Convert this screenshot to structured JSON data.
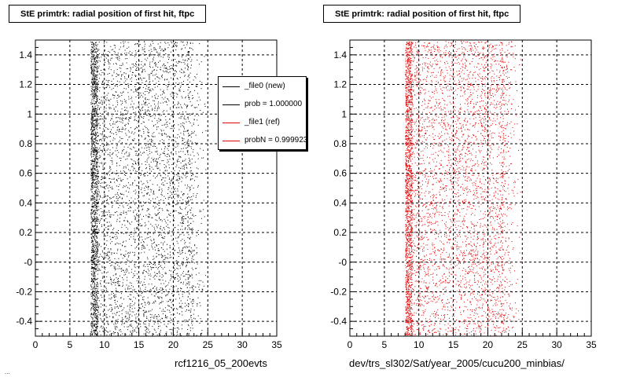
{
  "left_panel": {
    "title": "StE primtrk: radial position of first hit, ftpc",
    "xlabel": "rcf1216_05_200evts",
    "footer_text": "...",
    "legend": [
      {
        "label": "_file0 (new)",
        "color": "#000000"
      },
      {
        "label": "prob = 1.000000",
        "color": "#000000"
      },
      {
        "label": "_file1 (ref)",
        "color": "#e00000"
      },
      {
        "label": "probN = 0.999923",
        "color": "#e00000"
      }
    ]
  },
  "right_panel": {
    "title": "StE primtrk: radial position of first hit, ftpc",
    "xlabel": "dev/trs_sl302/Sat/year_2005/cucu200_minbias/"
  },
  "chart_data": [
    {
      "type": "scatter",
      "title": "StE primtrk: radial position of first hit, ftpc",
      "xlabel": "rcf1216_05_200evts",
      "ylabel": "",
      "xlim": [
        0,
        35
      ],
      "ylim": [
        -0.5,
        1.5
      ],
      "x_ticks": [
        0,
        5,
        10,
        15,
        20,
        25,
        30,
        35
      ],
      "x_tick_labels": [
        "0",
        "5",
        "10",
        "15",
        "20",
        "25",
        "30",
        "35"
      ],
      "y_ticks": [
        -0.4,
        -0.2,
        0,
        0.2,
        0.4,
        0.6,
        0.8,
        1.0,
        1.2,
        1.4
      ],
      "y_tick_labels": [
        "-0.4",
        "-0.2",
        "-0",
        "0.2",
        "0.4",
        "0.6",
        "0.8",
        "1",
        "1.2",
        "1.4"
      ],
      "grid": true,
      "series": [
        {
          "name": "_file0 (new)",
          "color": "#000000",
          "x_range": [
            8.0,
            25.0
          ],
          "dense_band": [
            8.0,
            9.0
          ]
        }
      ],
      "legend_position": "top-right"
    },
    {
      "type": "scatter",
      "title": "StE primtrk: radial position of first hit, ftpc",
      "xlabel": "dev/trs_sl302/Sat/year_2005/cucu200_minbias/",
      "ylabel": "",
      "xlim": [
        0,
        35
      ],
      "ylim": [
        -0.5,
        1.5
      ],
      "x_ticks": [
        0,
        5,
        10,
        15,
        20,
        25,
        30,
        35
      ],
      "x_tick_labels": [
        "0",
        "5",
        "10",
        "15",
        "20",
        "25",
        "30",
        "35"
      ],
      "y_ticks": [
        -0.4,
        -0.2,
        0,
        0.2,
        0.4,
        0.6,
        0.8,
        1.0,
        1.2,
        1.4
      ],
      "y_tick_labels": [
        "-0.4",
        "-0.2",
        "-0",
        "0.2",
        "0.4",
        "0.6",
        "0.8",
        "1",
        "1.2",
        "1.4"
      ],
      "grid": true,
      "series": [
        {
          "name": "_file1 (ref)",
          "color": "#e00000",
          "x_range": [
            8.0,
            25.0
          ],
          "dense_band": [
            8.0,
            9.0
          ]
        }
      ]
    }
  ]
}
